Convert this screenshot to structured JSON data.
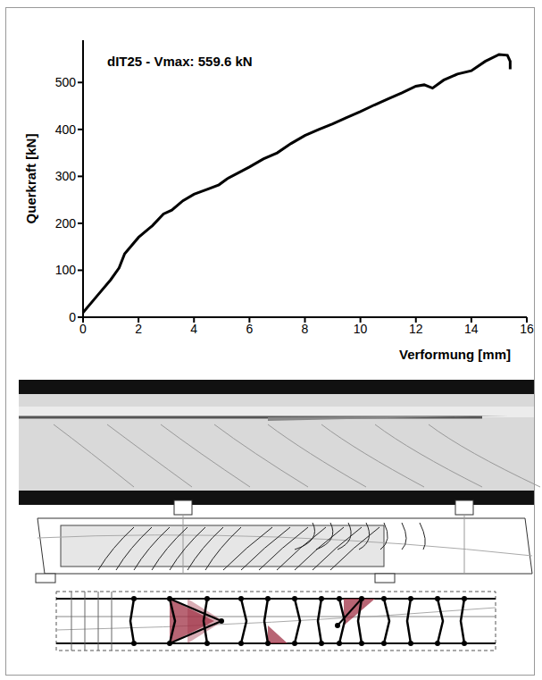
{
  "chart_data": {
    "type": "line",
    "title": "dIT25 - Vmax: 559.6 kN",
    "x_label": "Verformung [mm]",
    "y_label": "Querkraft [kN]",
    "x": [
      0,
      0.5,
      1,
      1.3,
      1.5,
      2,
      2.5,
      2.9,
      3.2,
      3.6,
      4,
      4.5,
      4.9,
      5.2,
      6,
      6.5,
      7,
      7.5,
      8,
      8.5,
      9,
      9.5,
      10,
      10.5,
      11,
      11.5,
      12,
      12.3,
      12.6,
      13,
      13.5,
      14,
      14.5,
      15,
      15.3,
      15.4,
      15.4
    ],
    "values": [
      10,
      45,
      80,
      105,
      135,
      170,
      195,
      220,
      228,
      248,
      262,
      273,
      282,
      295,
      320,
      337,
      350,
      370,
      387,
      400,
      412,
      425,
      438,
      452,
      465,
      478,
      492,
      495,
      488,
      505,
      518,
      525,
      545,
      559.6,
      558,
      545,
      528
    ],
    "color": "#000000",
    "xlim": [
      0,
      16
    ],
    "xticks": [
      0,
      2,
      4,
      6,
      8,
      10,
      12,
      14,
      16
    ],
    "ylim": [
      0,
      590
    ],
    "yticks": [
      0,
      100,
      200,
      300,
      400,
      500
    ],
    "grid": false
  }
}
